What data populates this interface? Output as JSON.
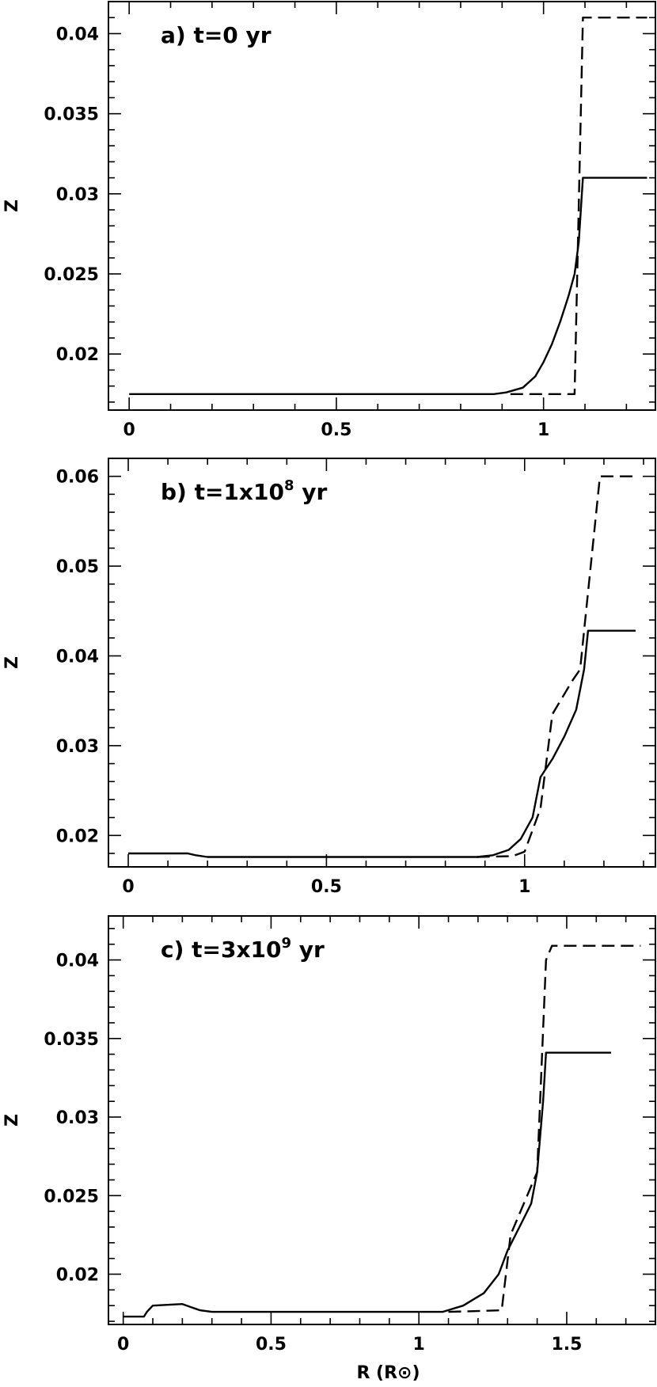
{
  "chart_data": [
    {
      "type": "line",
      "annotation": {
        "prefix": "a)  t=0",
        "sup": "",
        "suffix": " yr"
      },
      "ylabel": "Z",
      "xlabel": "",
      "xlim": [
        -0.05,
        1.27
      ],
      "ylim": [
        0.0165,
        0.042
      ],
      "xticks_major": [
        0,
        0.5,
        1
      ],
      "xtick_labels": [
        "0",
        "0.5",
        "1"
      ],
      "x_minor_step": 0.1,
      "yticks_major": [
        0.02,
        0.025,
        0.03,
        0.035,
        0.04
      ],
      "ytick_labels": [
        "0.02",
        "0.025",
        "0.03",
        "0.035",
        "0.04"
      ],
      "y_minor_step": 0.001,
      "grid": false,
      "series": [
        {
          "style": "solid",
          "x": [
            0,
            0.5,
            0.88,
            0.91,
            0.95,
            0.98,
            1.0,
            1.02,
            1.04,
            1.06,
            1.075,
            1.085,
            1.095,
            1.25
          ],
          "y": [
            0.0175,
            0.0175,
            0.0175,
            0.0176,
            0.0179,
            0.0186,
            0.0195,
            0.0206,
            0.022,
            0.0236,
            0.025,
            0.027,
            0.031,
            0.031
          ]
        },
        {
          "style": "dashed",
          "x": [
            0.92,
            1.075,
            1.095,
            1.25
          ],
          "y": [
            0.0175,
            0.0175,
            0.041,
            0.041
          ]
        }
      ]
    },
    {
      "type": "line",
      "annotation": {
        "prefix": "b)  t=1x10",
        "sup": "8",
        "suffix": "  yr"
      },
      "ylabel": "Z",
      "xlabel": "",
      "xlim": [
        -0.05,
        1.33
      ],
      "ylim": [
        0.0165,
        0.062
      ],
      "xticks_major": [
        0,
        0.5,
        1
      ],
      "xtick_labels": [
        "0",
        "0.5",
        "1"
      ],
      "x_minor_step": 0.1,
      "yticks_major": [
        0.02,
        0.03,
        0.04,
        0.05,
        0.06
      ],
      "ytick_labels": [
        "0.02",
        "0.03",
        "0.04",
        "0.05",
        "0.06"
      ],
      "y_minor_step": 0.002,
      "grid": false,
      "series": [
        {
          "style": "solid",
          "x": [
            0,
            0.15,
            0.17,
            0.2,
            0.5,
            0.88,
            0.92,
            0.96,
            0.99,
            1.02,
            1.04,
            1.07,
            1.1,
            1.13,
            1.15,
            1.16,
            1.28
          ],
          "y": [
            0.018,
            0.018,
            0.0178,
            0.0176,
            0.0176,
            0.0176,
            0.0178,
            0.0184,
            0.0196,
            0.022,
            0.0265,
            0.0285,
            0.031,
            0.034,
            0.0385,
            0.0428,
            0.0428
          ]
        },
        {
          "style": "dashed",
          "x": [
            0.88,
            0.97,
            1.0,
            1.04,
            1.07,
            1.12,
            1.14,
            1.19,
            1.28
          ],
          "y": [
            0.0176,
            0.0177,
            0.0182,
            0.023,
            0.0335,
            0.0372,
            0.0385,
            0.06,
            0.06
          ]
        }
      ]
    },
    {
      "type": "line",
      "annotation": {
        "prefix": "c)  t=3x10",
        "sup": "9",
        "suffix": "  yr"
      },
      "ylabel": "Z",
      "xlabel": "R (R⊙)",
      "xlim": [
        -0.05,
        1.8
      ],
      "ylim": [
        0.0168,
        0.0428
      ],
      "xticks_major": [
        0,
        0.5,
        1,
        1.5
      ],
      "xtick_labels": [
        "0",
        "0.5",
        "1",
        "1.5"
      ],
      "x_minor_step": 0.1,
      "yticks_major": [
        0.02,
        0.025,
        0.03,
        0.035,
        0.04
      ],
      "ytick_labels": [
        "0.02",
        "0.025",
        "0.03",
        "0.035",
        "0.04"
      ],
      "y_minor_step": 0.001,
      "grid": false,
      "series": [
        {
          "style": "solid",
          "x": [
            0,
            0.07,
            0.08,
            0.1,
            0.2,
            0.23,
            0.26,
            0.3,
            0.5,
            1.0,
            1.08,
            1.15,
            1.22,
            1.27,
            1.3,
            1.34,
            1.38,
            1.4,
            1.42,
            1.43,
            1.65
          ],
          "y": [
            0.0173,
            0.0173,
            0.0176,
            0.018,
            0.0181,
            0.0179,
            0.0177,
            0.0176,
            0.0176,
            0.0176,
            0.0176,
            0.018,
            0.0188,
            0.02,
            0.0215,
            0.023,
            0.0245,
            0.0265,
            0.031,
            0.0341,
            0.0341
          ]
        },
        {
          "style": "dashed",
          "x": [
            1.1,
            1.28,
            1.31,
            1.4,
            1.43,
            1.45,
            1.75
          ],
          "y": [
            0.0176,
            0.0177,
            0.0225,
            0.0265,
            0.04,
            0.0409,
            0.0409
          ]
        }
      ]
    }
  ]
}
